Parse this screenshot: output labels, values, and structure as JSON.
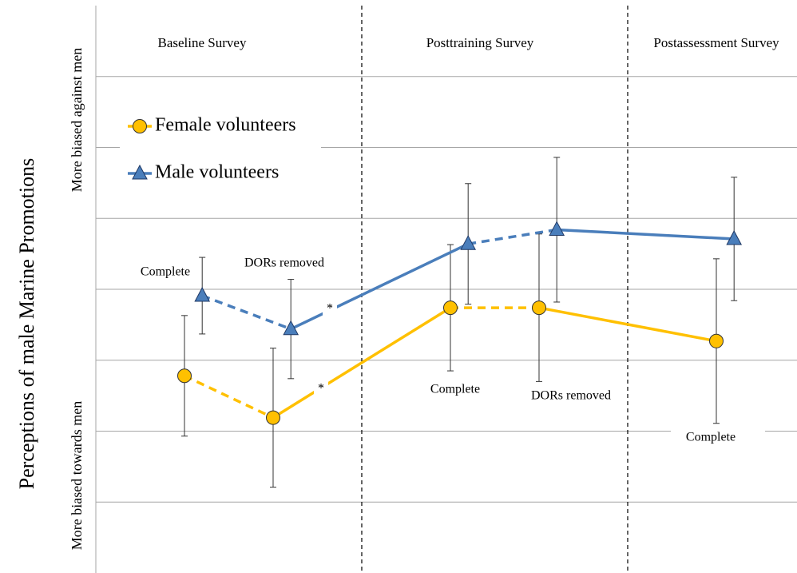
{
  "chart_data": {
    "type": "line",
    "y_label": "Perceptions of male Marine Promotions",
    "y_top_label": "More biased against men",
    "y_bottom_label": "More biased towards men",
    "sections": [
      "Baseline Survey",
      "Posttraining Survey",
      "Postassessment Survey"
    ],
    "dividers": [
      3,
      6
    ],
    "xlim": [
      0,
      7.91
    ],
    "ylim": [
      0,
      8
    ],
    "yticks": [
      1,
      2,
      3,
      4,
      5,
      6,
      7
    ],
    "grid": true,
    "legend": "upper left",
    "dashed_segments": [
      0,
      2
    ],
    "series": [
      {
        "name": "Female volunteers",
        "color": "#FFC000",
        "marker": "circle",
        "x": [
          1,
          2,
          4,
          5,
          7
        ],
        "values": [
          2.78,
          2.19,
          3.74,
          3.74,
          3.27
        ],
        "errors": [
          0.85,
          0.98,
          0.89,
          1.04,
          1.16
        ]
      },
      {
        "name": "Male volunteers",
        "color": "#4A7EBB",
        "marker": "triangle",
        "x": [
          1.2,
          2.2,
          4.2,
          5.2,
          7.2
        ],
        "values": [
          3.91,
          3.44,
          4.64,
          4.84,
          4.71
        ],
        "errors": [
          0.54,
          0.7,
          0.85,
          1.02,
          0.87
        ]
      }
    ],
    "annotations": [
      "Complete",
      "DORs removed",
      "*",
      "*",
      "Complete",
      "DORs removed",
      "Complete"
    ]
  }
}
